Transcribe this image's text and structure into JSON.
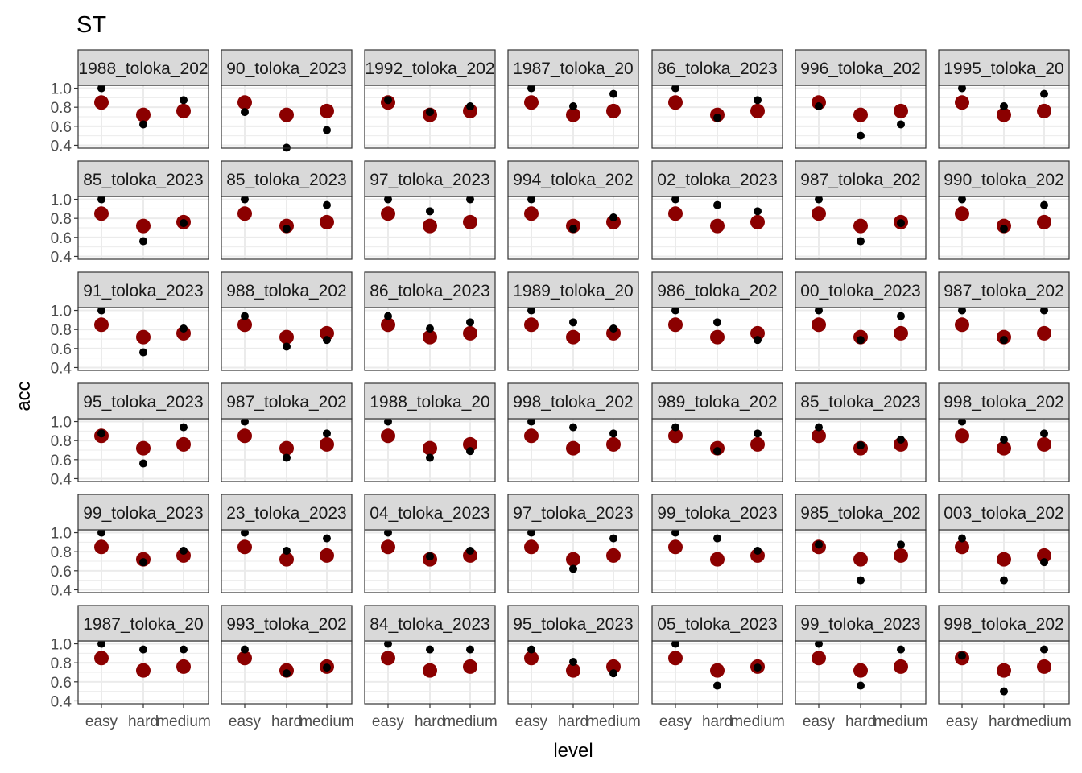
{
  "chart_data": {
    "type": "scatter",
    "title": "ST",
    "xlabel": "level",
    "ylabel": "acc",
    "categories": [
      "easy",
      "hard",
      "medium"
    ],
    "y_ticks": [
      0.4,
      0.6,
      0.8,
      1.0
    ],
    "ylim": [
      0.37,
      1.03
    ],
    "grid": true,
    "facet_rows": 6,
    "facet_cols": 7,
    "colors": {
      "reference_point": "#8b0000",
      "observed_point": "#000000",
      "strip_fill": "#d9d9d9",
      "panel_border": "#333333",
      "grid": "#ebebeb"
    },
    "reference_series": {
      "name": "",
      "values": [
        0.85,
        0.72,
        0.76
      ]
    },
    "panels": [
      {
        "label": "1988_toloka_202",
        "values": [
          1.0,
          0.62,
          0.875
        ]
      },
      {
        "label": "90_toloka_2023",
        "values": [
          0.75,
          0.375,
          0.56
        ]
      },
      {
        "label": "1992_toloka_202",
        "values": [
          0.875,
          0.75,
          0.81
        ]
      },
      {
        "label": "1987_toloka_20",
        "values": [
          1.0,
          0.81,
          0.94
        ]
      },
      {
        "label": "86_toloka_2023",
        "values": [
          1.0,
          0.69,
          0.875
        ]
      },
      {
        "label": "996_toloka_202",
        "values": [
          0.81,
          0.5,
          0.62
        ]
      },
      {
        "label": "1995_toloka_20",
        "values": [
          1.0,
          0.81,
          0.94
        ]
      },
      {
        "label": "85_toloka_2023",
        "values": [
          1.0,
          0.56,
          0.75
        ]
      },
      {
        "label": "85_toloka_2023",
        "values": [
          1.0,
          0.69,
          0.94
        ]
      },
      {
        "label": "97_toloka_2023",
        "values": [
          1.0,
          0.875,
          1.0
        ]
      },
      {
        "label": "994_toloka_202",
        "values": [
          1.0,
          0.69,
          0.81
        ]
      },
      {
        "label": "02_toloka_2023",
        "values": [
          1.0,
          0.94,
          0.875
        ]
      },
      {
        "label": "987_toloka_202",
        "values": [
          1.0,
          0.56,
          0.75
        ]
      },
      {
        "label": "990_toloka_202",
        "values": [
          1.0,
          0.69,
          0.94
        ]
      },
      {
        "label": "91_toloka_2023",
        "values": [
          1.0,
          0.56,
          0.81
        ]
      },
      {
        "label": "988_toloka_202",
        "values": [
          0.94,
          0.62,
          0.69
        ]
      },
      {
        "label": "86_toloka_2023",
        "values": [
          0.94,
          0.81,
          0.875
        ]
      },
      {
        "label": "1989_toloka_20",
        "values": [
          1.0,
          0.875,
          0.81
        ]
      },
      {
        "label": "986_toloka_202",
        "values": [
          1.0,
          0.875,
          0.69
        ]
      },
      {
        "label": "00_toloka_2023",
        "values": [
          1.0,
          0.69,
          0.94
        ]
      },
      {
        "label": "987_toloka_202",
        "values": [
          1.0,
          0.69,
          1.0
        ]
      },
      {
        "label": "95_toloka_2023",
        "values": [
          0.875,
          0.56,
          0.94
        ]
      },
      {
        "label": "987_toloka_202",
        "values": [
          1.0,
          0.62,
          0.875
        ]
      },
      {
        "label": "1988_toloka_20",
        "values": [
          1.0,
          0.62,
          0.69
        ]
      },
      {
        "label": "998_toloka_202",
        "values": [
          1.0,
          0.94,
          0.875
        ]
      },
      {
        "label": "989_toloka_202",
        "values": [
          0.94,
          0.69,
          0.875
        ]
      },
      {
        "label": "85_toloka_2023",
        "values": [
          0.94,
          0.75,
          0.81
        ]
      },
      {
        "label": "998_toloka_202",
        "values": [
          1.0,
          0.81,
          0.875
        ]
      },
      {
        "label": "99_toloka_2023",
        "values": [
          1.0,
          0.69,
          0.81
        ]
      },
      {
        "label": "23_toloka_2023",
        "values": [
          1.0,
          0.81,
          0.94
        ]
      },
      {
        "label": "04_toloka_2023",
        "values": [
          1.0,
          0.75,
          0.81
        ]
      },
      {
        "label": "97_toloka_2023",
        "values": [
          1.0,
          0.62,
          0.94
        ]
      },
      {
        "label": "99_toloka_2023",
        "values": [
          1.0,
          0.94,
          0.81
        ]
      },
      {
        "label": "985_toloka_202",
        "values": [
          0.875,
          0.5,
          0.875
        ]
      },
      {
        "label": "003_toloka_202",
        "values": [
          0.94,
          0.5,
          0.69
        ]
      },
      {
        "label": "1987_toloka_20",
        "values": [
          1.0,
          0.94,
          0.94
        ]
      },
      {
        "label": "993_toloka_202",
        "values": [
          0.94,
          0.69,
          0.75
        ]
      },
      {
        "label": "84_toloka_2023",
        "values": [
          1.0,
          0.94,
          0.94
        ]
      },
      {
        "label": "95_toloka_2023",
        "values": [
          0.94,
          0.81,
          0.69
        ]
      },
      {
        "label": "05_toloka_2023",
        "values": [
          1.0,
          0.56,
          0.75
        ]
      },
      {
        "label": "99_toloka_2023",
        "values": [
          1.0,
          0.56,
          0.94
        ]
      },
      {
        "label": "998_toloka_202",
        "values": [
          0.875,
          0.5,
          0.94
        ]
      }
    ]
  }
}
